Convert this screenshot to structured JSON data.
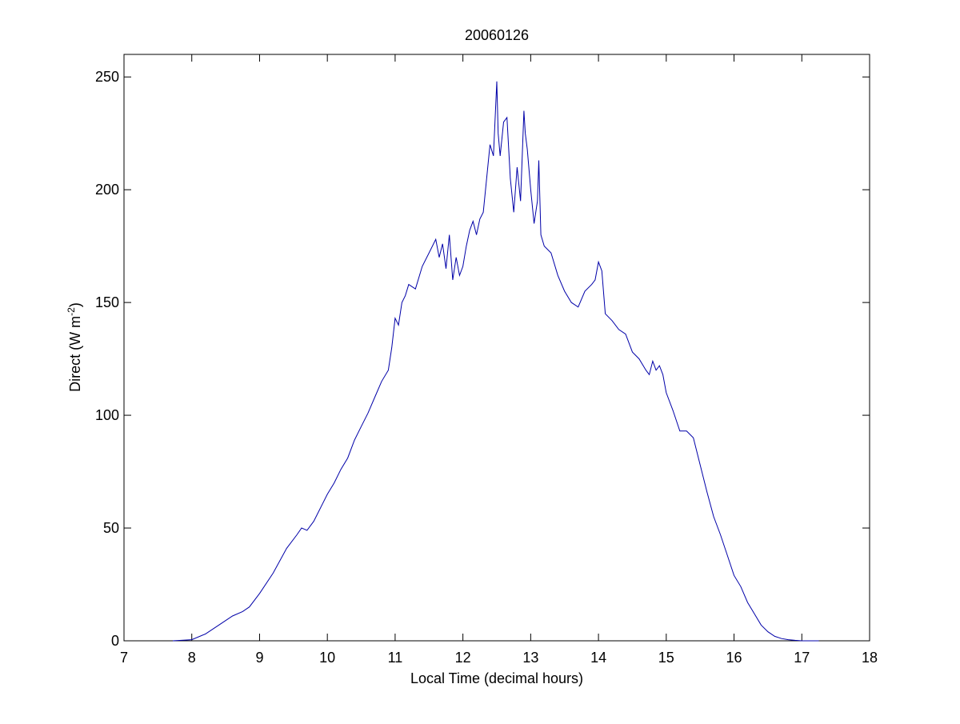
{
  "chart_data": {
    "type": "line",
    "title": "20060126",
    "xlabel": "Local Time (decimal hours)",
    "ylabel": {
      "text": "Direct (W m",
      "superscript": "-2",
      "close": ")"
    },
    "xlim": [
      7,
      18
    ],
    "ylim": [
      0,
      260
    ],
    "xticks": [
      7,
      8,
      9,
      10,
      11,
      12,
      13,
      14,
      15,
      16,
      17,
      18
    ],
    "yticks": [
      0,
      50,
      100,
      150,
      200,
      250
    ],
    "grid": false,
    "line_color": "#0000a8",
    "series": [
      {
        "x": [
          7.72,
          8.0,
          8.2,
          8.4,
          8.6,
          8.75,
          8.85,
          9.0,
          9.2,
          9.4,
          9.55,
          9.62,
          9.7,
          9.8,
          9.9,
          10.0,
          10.1,
          10.2,
          10.3,
          10.4,
          10.5,
          10.6,
          10.7,
          10.8,
          10.9,
          10.95,
          11.0,
          11.05,
          11.1,
          11.15,
          11.2,
          11.3,
          11.4,
          11.5,
          11.6,
          11.65,
          11.7,
          11.75,
          11.8,
          11.85,
          11.9,
          11.95,
          12.0,
          12.05,
          12.1,
          12.15,
          12.2,
          12.25,
          12.3,
          12.35,
          12.4,
          12.45,
          12.5,
          12.52,
          12.55,
          12.6,
          12.65,
          12.7,
          12.75,
          12.8,
          12.85,
          12.9,
          12.92,
          12.95,
          13.0,
          13.05,
          13.1,
          13.12,
          13.15,
          13.2,
          13.3,
          13.4,
          13.5,
          13.6,
          13.7,
          13.8,
          13.9,
          13.95,
          14.0,
          14.05,
          14.1,
          14.2,
          14.3,
          14.4,
          14.5,
          14.6,
          14.7,
          14.75,
          14.8,
          14.85,
          14.9,
          14.95,
          15.0,
          15.1,
          15.2,
          15.3,
          15.4,
          15.5,
          15.6,
          15.7,
          15.8,
          15.9,
          16.0,
          16.1,
          16.2,
          16.3,
          16.4,
          16.5,
          16.6,
          16.7,
          16.8,
          16.9,
          17.0,
          17.1,
          17.25
        ],
        "values": [
          0,
          0.5,
          3,
          7,
          11,
          13,
          15,
          21,
          30,
          41,
          47,
          50,
          49,
          53,
          59,
          65,
          70,
          76,
          81,
          89,
          95,
          101,
          108,
          115,
          120,
          130,
          143,
          140,
          150,
          153,
          158,
          156,
          166,
          172,
          178,
          170,
          176,
          165,
          180,
          160,
          170,
          162,
          166,
          175,
          182,
          186,
          180,
          187,
          190,
          205,
          220,
          215,
          248,
          225,
          215,
          230,
          232,
          205,
          190,
          210,
          195,
          235,
          225,
          218,
          200,
          185,
          195,
          213,
          180,
          175,
          172,
          162,
          155,
          150,
          148,
          155,
          158,
          160,
          168,
          164,
          145,
          142,
          138,
          136,
          128,
          125,
          120,
          118,
          124,
          120,
          122,
          118,
          110,
          102,
          93,
          93,
          90,
          78,
          66,
          55,
          47,
          38,
          29,
          24,
          17,
          12,
          7,
          4,
          2,
          1,
          0.5,
          0.2,
          0,
          0,
          0
        ]
      }
    ]
  }
}
